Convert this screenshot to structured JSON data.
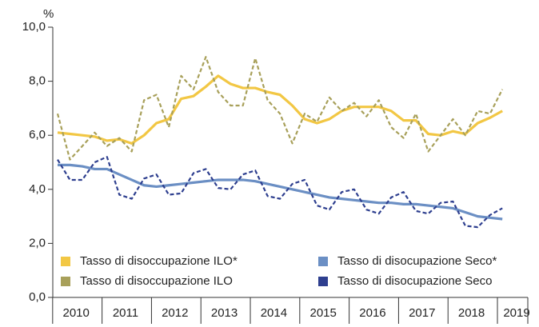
{
  "chart_data": {
    "type": "line",
    "y_unit": "%",
    "categories": [
      "2010",
      null,
      null,
      null,
      "2011",
      null,
      null,
      null,
      "2012",
      null,
      null,
      null,
      "2013",
      null,
      null,
      null,
      "2014",
      null,
      null,
      null,
      "2015",
      null,
      null,
      null,
      "2016",
      null,
      null,
      null,
      "2017",
      null,
      null,
      null,
      "2018",
      null,
      null,
      null,
      "2019"
    ],
    "series": [
      {
        "name": "Tasso di disoccupazione ILO*",
        "color": "#f2c744",
        "dashed": false,
        "values": [
          6.1,
          6.05,
          6.0,
          5.95,
          5.8,
          5.85,
          5.7,
          6.0,
          6.45,
          6.6,
          7.35,
          7.45,
          7.8,
          8.2,
          7.9,
          7.75,
          7.75,
          7.6,
          7.5,
          7.1,
          6.6,
          6.45,
          6.6,
          6.9,
          7.05,
          7.05,
          7.05,
          6.9,
          6.55,
          6.55,
          6.05,
          6.0,
          6.15,
          6.05,
          6.45,
          6.65,
          6.9
        ]
      },
      {
        "name": "Tasso di disoccupazione ILO",
        "color": "#a8a05a",
        "dashed": true,
        "values": [
          6.8,
          5.1,
          5.6,
          6.1,
          5.6,
          5.9,
          5.4,
          7.3,
          7.5,
          6.3,
          8.2,
          7.7,
          8.9,
          7.6,
          7.1,
          7.1,
          8.85,
          7.3,
          6.8,
          5.7,
          6.8,
          6.5,
          7.4,
          6.9,
          7.2,
          6.7,
          7.3,
          6.3,
          5.9,
          6.8,
          5.4,
          6.0,
          6.6,
          6.0,
          6.9,
          6.8,
          7.7
        ]
      },
      {
        "name": "Tasso di disocupazione Seco*",
        "color": "#6b8fc4",
        "dashed": false,
        "values": [
          4.9,
          4.9,
          4.85,
          4.75,
          4.75,
          4.55,
          4.35,
          4.15,
          4.1,
          4.15,
          4.2,
          4.25,
          4.3,
          4.35,
          4.35,
          4.35,
          4.3,
          4.2,
          4.1,
          4.0,
          3.9,
          3.8,
          3.7,
          3.65,
          3.6,
          3.55,
          3.5,
          3.5,
          3.45,
          3.45,
          3.4,
          3.35,
          3.3,
          3.15,
          3.0,
          2.95,
          2.9
        ]
      },
      {
        "name": "Tasso di disocupazione Seco",
        "color": "#2e3f8f",
        "dashed": true,
        "values": [
          5.1,
          4.35,
          4.35,
          5.0,
          5.2,
          3.8,
          3.65,
          4.4,
          4.55,
          3.8,
          3.85,
          4.6,
          4.75,
          4.05,
          4.0,
          4.55,
          4.7,
          3.75,
          3.65,
          4.2,
          4.35,
          3.4,
          3.25,
          3.9,
          4.0,
          3.25,
          3.1,
          3.7,
          3.9,
          3.2,
          3.1,
          3.5,
          3.55,
          2.65,
          2.6,
          3.05,
          3.3
        ]
      }
    ],
    "ylim": [
      0,
      10
    ],
    "yticks": [
      {
        "value": 0,
        "label": "0,0"
      },
      {
        "value": 2,
        "label": "2,0"
      },
      {
        "value": 4,
        "label": "4,0"
      },
      {
        "value": 6,
        "label": "6,0"
      },
      {
        "value": 8,
        "label": "8,0"
      },
      {
        "value": 10,
        "label": "10,0"
      }
    ],
    "grid": false,
    "legend": "bottom"
  }
}
